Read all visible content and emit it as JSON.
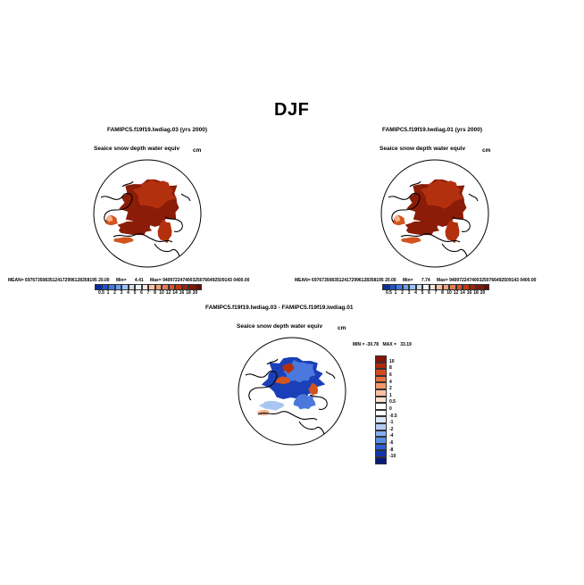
{
  "page_title": "DJF",
  "panels": [
    {
      "id": "left",
      "case": "FAMIPC5.f19f19.lwdiag.03 (yrs 2000)",
      "variable": "Seaice snow depth water equiv",
      "units": "cm",
      "stats": {
        "mean_label": "MEAN=",
        "mean": "69767350835124172996128358195 20.00",
        "min_label": "Min=",
        "min": "4.41",
        "max_label": "Max=",
        "max": "9409722474003250766492509143 0400.00"
      }
    },
    {
      "id": "right",
      "case": "FAMIPC5.f19f19.lwdiag.01 (yrs 2000)",
      "variable": "Seaice snow depth water equiv",
      "units": "cm",
      "stats": {
        "mean_label": "MEAN=",
        "mean": "69767350835124172996128358195 20.00",
        "min_label": "Min=",
        "min": "7.74",
        "max_label": "Max=",
        "max": "9409722474003250766492509143 0400.00"
      }
    },
    {
      "id": "diff",
      "case": "FAMIPC5.f19f19.lwdiag.03 - FAMIPC5.f19f19.lwdiag.01",
      "variable": "Seaice snow depth water equiv",
      "units": "cm",
      "stats": {
        "min_label": "MIN =",
        "min": "-30.78",
        "max_label": "MAX =",
        "max": "33.19"
      }
    }
  ],
  "colorbar_abs": {
    "labels": [
      "0.5",
      "1",
      "2",
      "3",
      "4",
      "5",
      "6",
      "7",
      "8",
      "10",
      "12",
      "14",
      "16",
      "18",
      "20"
    ],
    "colors": [
      "#0a2f9e",
      "#1f55d6",
      "#3f7ae8",
      "#6a9ef0",
      "#9cc0f5",
      "#c8dcf8",
      "#eef4fc",
      "#fde6d8",
      "#f8c4a4",
      "#f0a07a",
      "#e67a52",
      "#d6542e",
      "#c03614",
      "#a3200a",
      "#861505",
      "#6a0c02"
    ]
  },
  "colorbar_diff": {
    "labels": [
      "10",
      "8",
      "6",
      "4",
      "2",
      "1",
      "0.5",
      "0",
      "-0.5",
      "-1",
      "-2",
      "-4",
      "-6",
      "-8",
      "-10"
    ],
    "colors": [
      "#861505",
      "#b02a0c",
      "#d24a20",
      "#e8703c",
      "#f3986a",
      "#f8c0a0",
      "#fde2d2",
      "#ffffff",
      "#ffffff",
      "#dae8fa",
      "#b2cdf5",
      "#86aeee",
      "#5b8be4",
      "#2f5fd4",
      "#1236aa",
      "#061a78"
    ]
  },
  "map_colors": {
    "ice_dark": "#8a1c08",
    "ice_red": "#b3300f",
    "ice_orange": "#d2541f",
    "ice_light": "#f3b28a",
    "blue_dark": "#1a3fb8",
    "blue_mid": "#4b78dc",
    "blue_light": "#a9c6f2",
    "coast": "#000000"
  }
}
